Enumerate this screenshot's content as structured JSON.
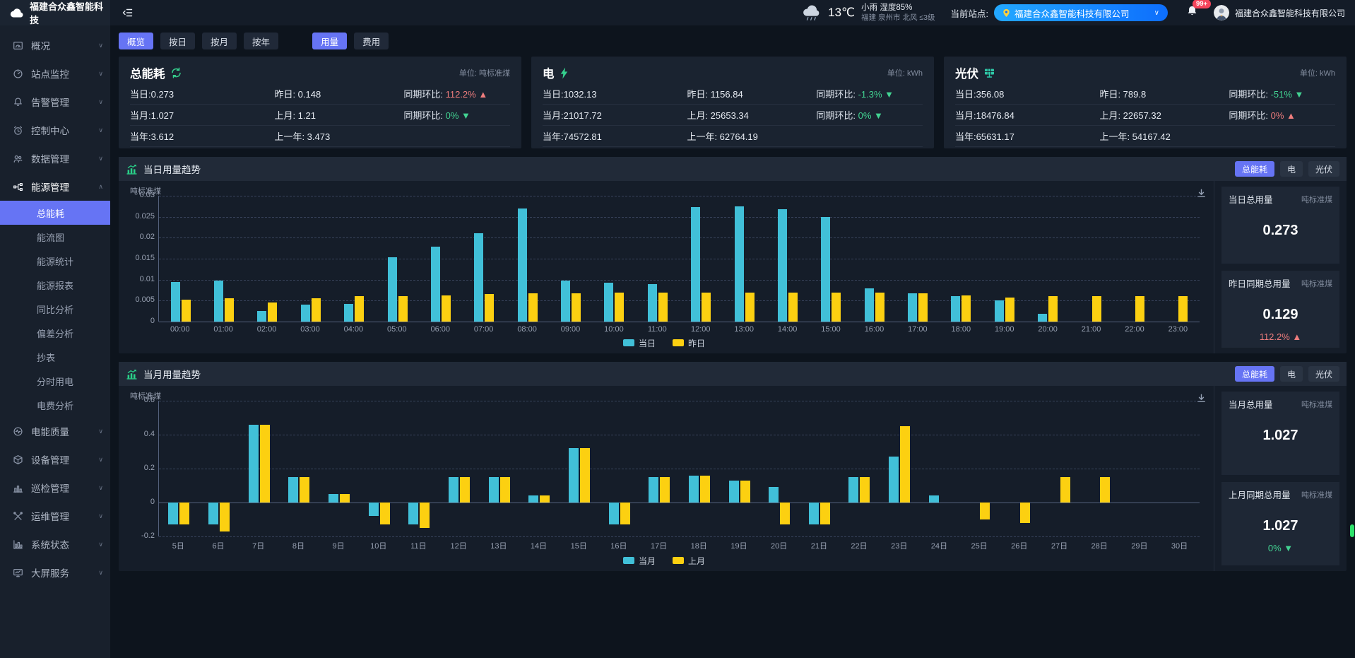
{
  "topbar": {
    "logo_text": "福建合众鑫智能科技",
    "weather": {
      "temp": "13℃",
      "condition": "小雨 湿度85%",
      "location": "福建 泉州市 北风 ≤3级"
    },
    "site_label": "当前站点:",
    "site_value": "福建合众鑫智能科技有限公司",
    "notification_count": "99+",
    "user_name": "福建合众鑫智能科技有限公司"
  },
  "colors": {
    "accent": "#6674f4",
    "teal": "#41c0d8",
    "yellow": "#fcd011",
    "green": "#42d392",
    "red": "#ee7d7d"
  },
  "sidebar": {
    "items": [
      {
        "name": "overview",
        "label": "概况",
        "icon": "dashboard"
      },
      {
        "name": "site-monitoring",
        "label": "站点监控",
        "icon": "gauge"
      },
      {
        "name": "alarm-management",
        "label": "告警管理",
        "icon": "bell"
      },
      {
        "name": "control-center",
        "label": "控制中心",
        "icon": "alarm-clock"
      },
      {
        "name": "data-management",
        "label": "数据管理",
        "icon": "users"
      },
      {
        "name": "energy-management",
        "label": "能源管理",
        "icon": "energy-network",
        "expanded": true,
        "active": true,
        "children": [
          {
            "name": "total-energy",
            "label": "总能耗",
            "active": true
          },
          {
            "name": "energy-flow",
            "label": "能流图"
          },
          {
            "name": "energy-stats",
            "label": "能源统计"
          },
          {
            "name": "energy-report",
            "label": "能源报表"
          },
          {
            "name": "yoy-analysis",
            "label": "同比分析"
          },
          {
            "name": "deviation-analysis",
            "label": "偏差分析"
          },
          {
            "name": "meter-reading",
            "label": "抄表"
          },
          {
            "name": "tou-power",
            "label": "分时用电"
          },
          {
            "name": "tariff-analysis",
            "label": "电费分析"
          }
        ]
      },
      {
        "name": "power-quality",
        "label": "电能质量",
        "icon": "waveform"
      },
      {
        "name": "device-management",
        "label": "设备管理",
        "icon": "cube"
      },
      {
        "name": "inspection-management",
        "label": "巡检管理",
        "icon": "bar-chart"
      },
      {
        "name": "ops-management",
        "label": "运维管理",
        "icon": "tools"
      },
      {
        "name": "system-status",
        "label": "系统状态",
        "icon": "line-chart"
      },
      {
        "name": "bigscreen-service",
        "label": "大屏服务",
        "icon": "monitor"
      }
    ]
  },
  "tabs": {
    "period": [
      {
        "name": "overview",
        "label": "概览",
        "active": true
      },
      {
        "name": "by-day",
        "label": "按日"
      },
      {
        "name": "by-month",
        "label": "按月"
      },
      {
        "name": "by-year",
        "label": "按年"
      }
    ],
    "mode": [
      {
        "name": "usage",
        "label": "用量",
        "active": true
      },
      {
        "name": "cost",
        "label": "费用"
      }
    ]
  },
  "cards": [
    {
      "name": "total-energy",
      "title": "总能耗",
      "icon": "recycle",
      "unit": "单位: 吨标准煤",
      "rows": [
        {
          "a": "当日:0.273",
          "b": "昨日: 0.148",
          "cmp": {
            "label": "同期环比:",
            "value": "112.2%",
            "dir": "up",
            "tone": "red"
          }
        },
        {
          "a": "当月:1.027",
          "b": "上月: 1.21",
          "cmp": {
            "label": "同期环比:",
            "value": "0%",
            "dir": "down",
            "tone": "green"
          }
        },
        {
          "a": "当年:3.612",
          "b": "上一年: 3.473"
        }
      ]
    },
    {
      "name": "electric",
      "title": "电",
      "icon": "bolt",
      "unit": "单位: kWh",
      "rows": [
        {
          "a": "当日:1032.13",
          "b": "昨日: 1156.84",
          "cmp": {
            "label": "同期环比:",
            "value": "-1.3%",
            "dir": "down",
            "tone": "green"
          }
        },
        {
          "a": "当月:21017.72",
          "b": "上月: 25653.34",
          "cmp": {
            "label": "同期环比:",
            "value": "0%",
            "dir": "down",
            "tone": "green"
          }
        },
        {
          "a": "当年:74572.81",
          "b": "上一年: 62764.19"
        }
      ]
    },
    {
      "name": "pv",
      "title": "光伏",
      "icon": "solar-panel",
      "unit": "单位: kWh",
      "rows": [
        {
          "a": "当日:356.08",
          "b": "昨日: 789.8",
          "cmp": {
            "label": "同期环比:",
            "value": "-51%",
            "dir": "down",
            "tone": "green"
          }
        },
        {
          "a": "当月:18476.84",
          "b": "上月: 22657.32",
          "cmp": {
            "label": "同期环比:",
            "value": "0%",
            "dir": "up",
            "tone": "red"
          }
        },
        {
          "a": "当年:65631.17",
          "b": "上一年: 54167.42"
        }
      ]
    }
  ],
  "chart_data": [
    {
      "type": "bar",
      "title": "当日用量趋势",
      "ylabel": "吨标准煤",
      "grid": true,
      "legend_position": "bottom",
      "ylim": [
        0,
        0.03
      ],
      "ytick_values": [
        0,
        0.005,
        0.01,
        0.015,
        0.02,
        0.025,
        0.03
      ],
      "ytick_labels": [
        "0",
        "0.005",
        "0.01",
        "0.015",
        "0.02",
        "0.025",
        "0.03"
      ],
      "categories": [
        "00:00",
        "01:00",
        "02:00",
        "03:00",
        "04:00",
        "05:00",
        "06:00",
        "07:00",
        "08:00",
        "09:00",
        "10:00",
        "11:00",
        "12:00",
        "13:00",
        "14:00",
        "15:00",
        "16:00",
        "17:00",
        "18:00",
        "19:00",
        "20:00",
        "21:00",
        "22:00",
        "23:00"
      ],
      "series": [
        {
          "name": "当日",
          "color": "#41c0d8",
          "values": [
            0.0095,
            0.0098,
            0.0025,
            0.004,
            0.0043,
            0.0153,
            0.0178,
            0.021,
            0.027,
            0.0098,
            0.0093,
            0.009,
            0.0273,
            0.0275,
            0.0268,
            0.025,
            0.008,
            0.0068,
            0.006,
            0.005,
            0.0018,
            0,
            0,
            0
          ]
        },
        {
          "name": "昨日",
          "color": "#fcd011",
          "values": [
            0.0053,
            0.0055,
            0.0045,
            0.0055,
            0.006,
            0.006,
            0.0062,
            0.0065,
            0.0068,
            0.0068,
            0.007,
            0.007,
            0.007,
            0.007,
            0.007,
            0.007,
            0.007,
            0.0068,
            0.0062,
            0.0058,
            0.006,
            0.006,
            0.006,
            0.006
          ]
        }
      ],
      "buttons": [
        {
          "name": "total-energy",
          "label": "总能耗",
          "active": true
        },
        {
          "name": "electric",
          "label": "电"
        },
        {
          "name": "pv",
          "label": "光伏"
        }
      ],
      "summary": [
        {
          "name": "today-total",
          "label": "当日总用量",
          "unit": "吨标准煤",
          "value": "0.273"
        },
        {
          "name": "yesterday-total",
          "label": "昨日同期总用量",
          "unit": "吨标准煤",
          "value": "0.129",
          "pct": "112.2%",
          "dir": "up",
          "tone": "red"
        }
      ]
    },
    {
      "type": "bar",
      "title": "当月用量趋势",
      "ylabel": "吨标准煤",
      "grid": true,
      "legend_position": "bottom",
      "ylim": [
        -0.2,
        0.6
      ],
      "ytick_values": [
        -0.2,
        0,
        0.2,
        0.4,
        0.6
      ],
      "ytick_labels": [
        "-0.2",
        "0",
        "0.2",
        "0.4",
        "0.6"
      ],
      "categories": [
        "5日",
        "6日",
        "7日",
        "8日",
        "9日",
        "10日",
        "11日",
        "12日",
        "13日",
        "14日",
        "15日",
        "16日",
        "17日",
        "18日",
        "19日",
        "20日",
        "21日",
        "22日",
        "23日",
        "24日",
        "25日",
        "26日",
        "27日",
        "28日",
        "29日",
        "30日"
      ],
      "series": [
        {
          "name": "当月",
          "color": "#41c0d8",
          "values": [
            -0.13,
            -0.13,
            0.46,
            0.15,
            0.05,
            -0.08,
            -0.13,
            0.15,
            0.15,
            0.04,
            0.32,
            -0.13,
            0.15,
            0.16,
            0.13,
            0.09,
            -0.13,
            0.15,
            0.27,
            0.04,
            0,
            0,
            0,
            0,
            0,
            0
          ]
        },
        {
          "name": "上月",
          "color": "#fcd011",
          "values": [
            -0.13,
            -0.17,
            0.46,
            0.15,
            0.05,
            -0.13,
            -0.15,
            0.15,
            0.15,
            0.04,
            0.32,
            -0.13,
            0.15,
            0.16,
            0.13,
            -0.13,
            -0.13,
            0.15,
            0.45,
            0,
            -0.1,
            -0.12,
            0.15,
            0.15,
            0,
            0
          ]
        }
      ],
      "buttons": [
        {
          "name": "total-energy",
          "label": "总能耗",
          "active": true
        },
        {
          "name": "electric",
          "label": "电"
        },
        {
          "name": "pv",
          "label": "光伏"
        }
      ],
      "summary": [
        {
          "name": "month-total",
          "label": "当月总用量",
          "unit": "吨标准煤",
          "value": "1.027"
        },
        {
          "name": "last-month-total",
          "label": "上月同期总用量",
          "unit": "吨标准煤",
          "value": "1.027",
          "pct": "0%",
          "dir": "down",
          "tone": "green"
        }
      ]
    }
  ]
}
